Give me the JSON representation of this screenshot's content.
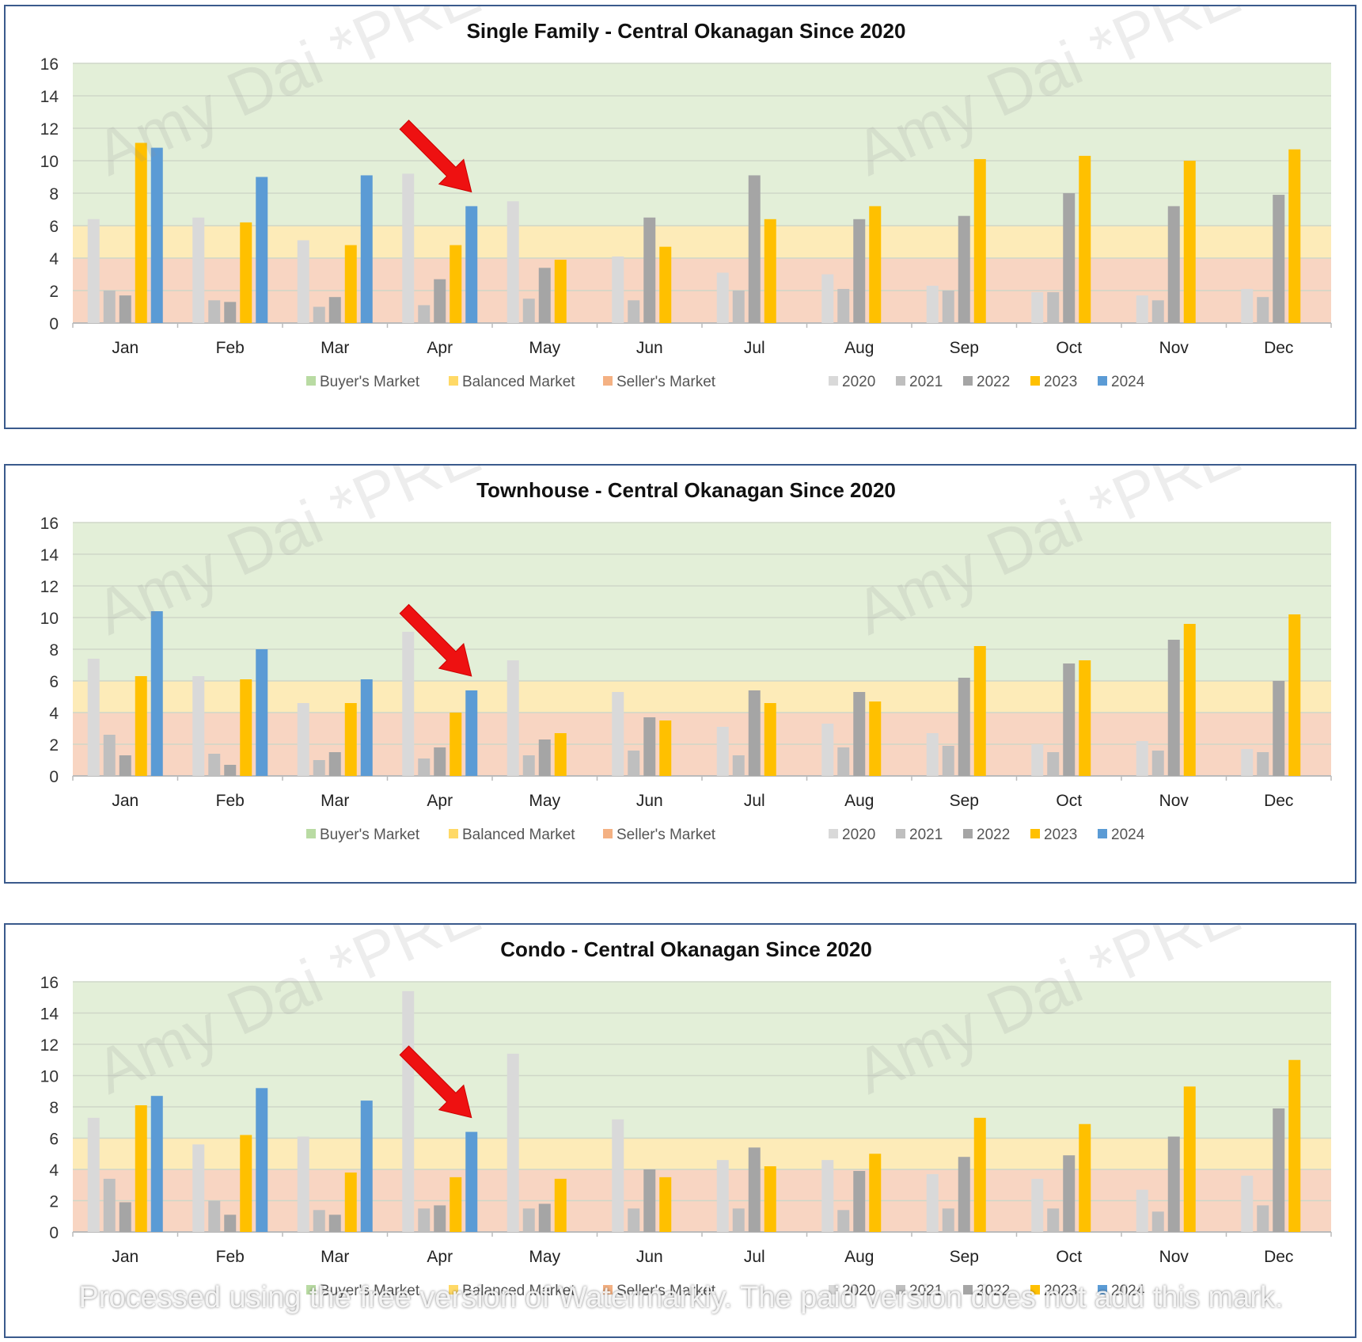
{
  "chart_data": [
    {
      "type": "bar",
      "title": "Single Family  - Central Okanagan Since 2020",
      "categories": [
        "Jan",
        "Feb",
        "Mar",
        "Apr",
        "May",
        "Jun",
        "Jul",
        "Aug",
        "Sep",
        "Oct",
        "Nov",
        "Dec"
      ],
      "ylim": [
        0,
        16
      ],
      "yticks": [
        "0",
        "2",
        "4",
        "6",
        "8",
        "10",
        "12",
        "14",
        "16"
      ],
      "grid": true,
      "bands": [
        {
          "name": "Seller's Market",
          "from": 0,
          "to": 4,
          "color": "#f8d5c2"
        },
        {
          "name": "Balanced Market",
          "from": 4,
          "to": 6,
          "color": "#fdebb8"
        },
        {
          "name": "Buyer's Market",
          "from": 6,
          "to": 16,
          "color": "#e3efd8"
        }
      ],
      "series": [
        {
          "name": "2020",
          "color": "#d9d9d9",
          "values": [
            6.4,
            6.5,
            5.1,
            9.2,
            7.5,
            4.1,
            3.1,
            3.0,
            2.3,
            1.9,
            1.7,
            2.1
          ]
        },
        {
          "name": "2021",
          "color": "#bfbfbf",
          "values": [
            2.0,
            1.4,
            1.0,
            1.1,
            1.5,
            1.4,
            2.0,
            2.1,
            2.0,
            1.9,
            1.4,
            1.6
          ]
        },
        {
          "name": "2022",
          "color": "#a5a5a5",
          "values": [
            1.7,
            1.3,
            1.6,
            2.7,
            3.4,
            6.5,
            9.1,
            6.4,
            6.6,
            8.0,
            7.2,
            7.9
          ]
        },
        {
          "name": "2023",
          "color": "#ffc000",
          "values": [
            11.1,
            6.2,
            4.8,
            4.8,
            3.9,
            4.7,
            6.4,
            7.2,
            10.1,
            10.3,
            10.0,
            10.7
          ]
        },
        {
          "name": "2024",
          "color": "#5b9bd5",
          "values": [
            10.8,
            9.0,
            9.1,
            7.2,
            null,
            null,
            null,
            null,
            null,
            null,
            null,
            null
          ]
        }
      ],
      "legend_placement": "bottom"
    },
    {
      "type": "bar",
      "title": "Townhouse  - Central Okanagan Since 2020",
      "categories": [
        "Jan",
        "Feb",
        "Mar",
        "Apr",
        "May",
        "Jun",
        "Jul",
        "Aug",
        "Sep",
        "Oct",
        "Nov",
        "Dec"
      ],
      "ylim": [
        0,
        16
      ],
      "yticks": [
        "0",
        "2",
        "4",
        "6",
        "8",
        "10",
        "12",
        "14",
        "16"
      ],
      "grid": true,
      "bands": [
        {
          "name": "Seller's Market",
          "from": 0,
          "to": 4,
          "color": "#f8d5c2"
        },
        {
          "name": "Balanced Market",
          "from": 4,
          "to": 6,
          "color": "#fdebb8"
        },
        {
          "name": "Buyer's Market",
          "from": 6,
          "to": 16,
          "color": "#e3efd8"
        }
      ],
      "series": [
        {
          "name": "2020",
          "color": "#d9d9d9",
          "values": [
            7.4,
            6.3,
            4.6,
            9.1,
            7.3,
            5.3,
            3.1,
            3.3,
            2.7,
            2.0,
            2.2,
            1.7
          ]
        },
        {
          "name": "2021",
          "color": "#bfbfbf",
          "values": [
            2.6,
            1.4,
            1.0,
            1.1,
            1.3,
            1.6,
            1.3,
            1.8,
            1.9,
            1.5,
            1.6,
            1.5
          ]
        },
        {
          "name": "2022",
          "color": "#a5a5a5",
          "values": [
            1.3,
            0.7,
            1.5,
            1.8,
            2.3,
            3.7,
            5.4,
            5.3,
            6.2,
            7.1,
            8.6,
            6.0
          ]
        },
        {
          "name": "2023",
          "color": "#ffc000",
          "values": [
            6.3,
            6.1,
            4.6,
            4.0,
            2.7,
            3.5,
            4.6,
            4.7,
            8.2,
            7.3,
            9.6,
            10.2
          ]
        },
        {
          "name": "2024",
          "color": "#5b9bd5",
          "values": [
            10.4,
            8.0,
            6.1,
            5.4,
            null,
            null,
            null,
            null,
            null,
            null,
            null,
            null
          ]
        }
      ],
      "legend_placement": "bottom"
    },
    {
      "type": "bar",
      "title": "Condo  - Central Okanagan Since 2020",
      "categories": [
        "Jan",
        "Feb",
        "Mar",
        "Apr",
        "May",
        "Jun",
        "Jul",
        "Aug",
        "Sep",
        "Oct",
        "Nov",
        "Dec"
      ],
      "ylim": [
        0,
        16
      ],
      "yticks": [
        "0",
        "2",
        "4",
        "6",
        "8",
        "10",
        "12",
        "14",
        "16"
      ],
      "grid": true,
      "bands": [
        {
          "name": "Seller's Market",
          "from": 0,
          "to": 4,
          "color": "#f8d5c2"
        },
        {
          "name": "Balanced Market",
          "from": 4,
          "to": 6,
          "color": "#fdebb8"
        },
        {
          "name": "Buyer's Market",
          "from": 6,
          "to": 16,
          "color": "#e3efd8"
        }
      ],
      "series": [
        {
          "name": "2020",
          "color": "#d9d9d9",
          "values": [
            7.3,
            5.6,
            6.1,
            15.4,
            11.4,
            7.2,
            4.6,
            4.6,
            3.7,
            3.4,
            2.7,
            3.6
          ]
        },
        {
          "name": "2021",
          "color": "#bfbfbf",
          "values": [
            3.4,
            2.0,
            1.4,
            1.5,
            1.5,
            1.5,
            1.5,
            1.4,
            1.5,
            1.5,
            1.3,
            1.7
          ]
        },
        {
          "name": "2022",
          "color": "#a5a5a5",
          "values": [
            1.9,
            1.1,
            1.1,
            1.7,
            1.8,
            4.0,
            5.4,
            3.9,
            4.8,
            4.9,
            6.1,
            7.9
          ]
        },
        {
          "name": "2023",
          "color": "#ffc000",
          "values": [
            8.1,
            6.2,
            3.8,
            3.5,
            3.4,
            3.5,
            4.2,
            5.0,
            7.3,
            6.9,
            9.3,
            11.0
          ]
        },
        {
          "name": "2024",
          "color": "#5b9bd5",
          "values": [
            8.7,
            9.2,
            8.4,
            6.4,
            null,
            null,
            null,
            null,
            null,
            null,
            null,
            null
          ]
        }
      ],
      "legend_placement": "bottom"
    }
  ],
  "watermark": {
    "text": "Amy Dai *PREC"
  },
  "footer_watermark": "Processed using the free version of Watermarkly. The paid version does not add this mark."
}
